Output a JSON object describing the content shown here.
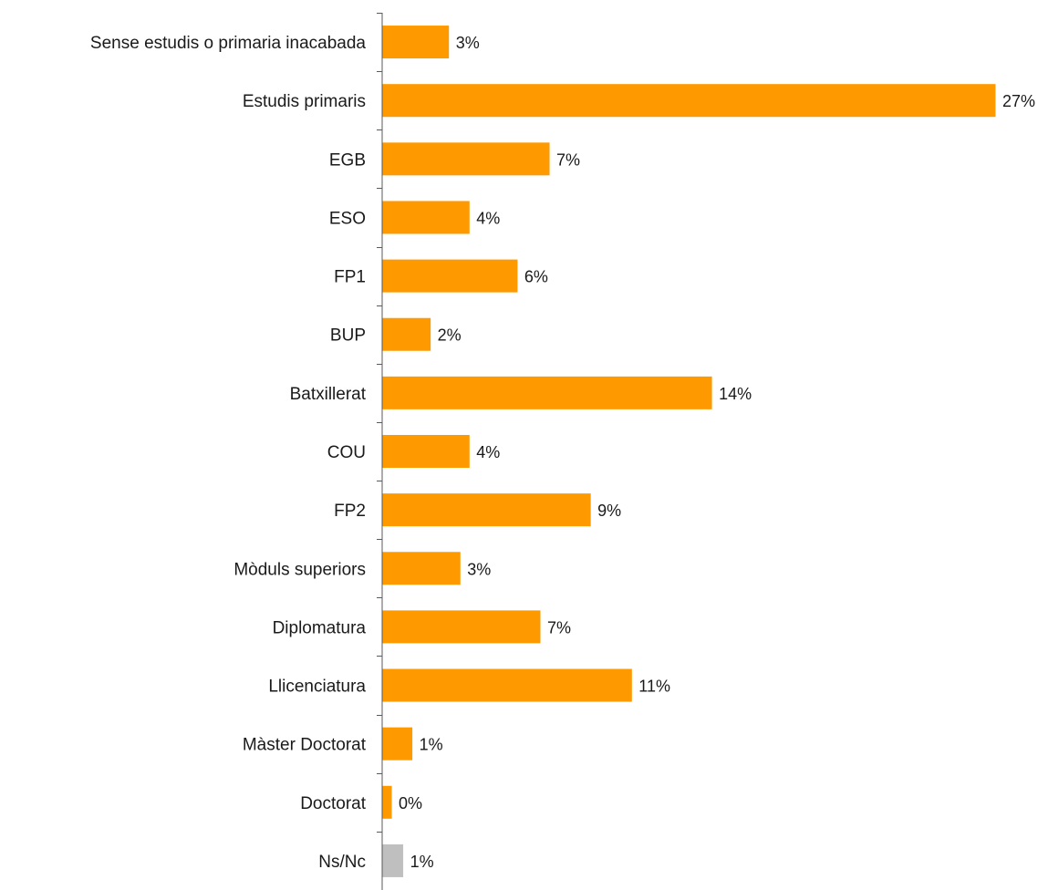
{
  "chart_data": {
    "type": "bar",
    "orientation": "horizontal",
    "title": "",
    "xlabel": "",
    "ylabel": "",
    "categories": [
      "Sense estudis o primaria inacabada",
      "Estudis primaris",
      "EGB",
      "ESO",
      "FP1",
      "BUP",
      "Batxillerat",
      "COU",
      "FP2",
      "Mòduls superiors",
      "Diplomatura",
      "Llicenciatura",
      "Màster Doctorat",
      "Doctorat",
      "Ns/Nc"
    ],
    "values": [
      2.9,
      26.8,
      7.3,
      3.8,
      5.9,
      2.1,
      14.4,
      3.8,
      9.1,
      3.4,
      6.9,
      10.9,
      1.3,
      0.4,
      0.9
    ],
    "value_labels": [
      "3%",
      "27%",
      "7%",
      "4%",
      "6%",
      "2%",
      "14%",
      "4%",
      "9%",
      "3%",
      "7%",
      "11%",
      "1%",
      "0%",
      "1%"
    ],
    "xlim": [
      0,
      27
    ],
    "grid": false,
    "legend": "none",
    "colors": {
      "bar": "#FF9900",
      "bar_nsnc": "#BFBFBF",
      "axis": "#595959",
      "text": "#1A1A1A"
    },
    "bar_color_overrides": {
      "Ns/Nc": "bar_nsnc"
    }
  }
}
